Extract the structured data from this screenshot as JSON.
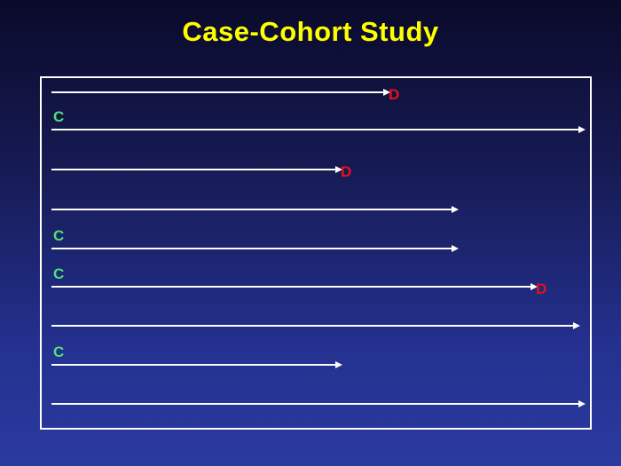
{
  "title": "Case-Cohort Study",
  "rows": [
    {
      "end_fraction": 0.63,
      "end_label": "D",
      "sub_label": ""
    },
    {
      "end_fraction": 1.0,
      "end_label": "",
      "sub_label": "C"
    },
    {
      "end_fraction": 0.54,
      "end_label": "D",
      "sub_label": ""
    },
    {
      "end_fraction": 0.76,
      "end_label": "",
      "sub_label": ""
    },
    {
      "end_fraction": 0.76,
      "end_label": "",
      "sub_label": "C"
    },
    {
      "end_fraction": 0.91,
      "end_label": "D",
      "sub_label": "C"
    },
    {
      "end_fraction": 0.99,
      "end_label": "",
      "sub_label": ""
    },
    {
      "end_fraction": 0.54,
      "end_label": "",
      "sub_label": "C"
    },
    {
      "end_fraction": 1.0,
      "end_label": "",
      "sub_label": ""
    }
  ],
  "colors": {
    "background_top": "#0a0a2a",
    "background_bottom": "#2b3a9f",
    "title": "#ffff00",
    "case_marker": "#e8101a",
    "subcohort_marker": "#4ee07a",
    "lines": "#ffffff"
  }
}
